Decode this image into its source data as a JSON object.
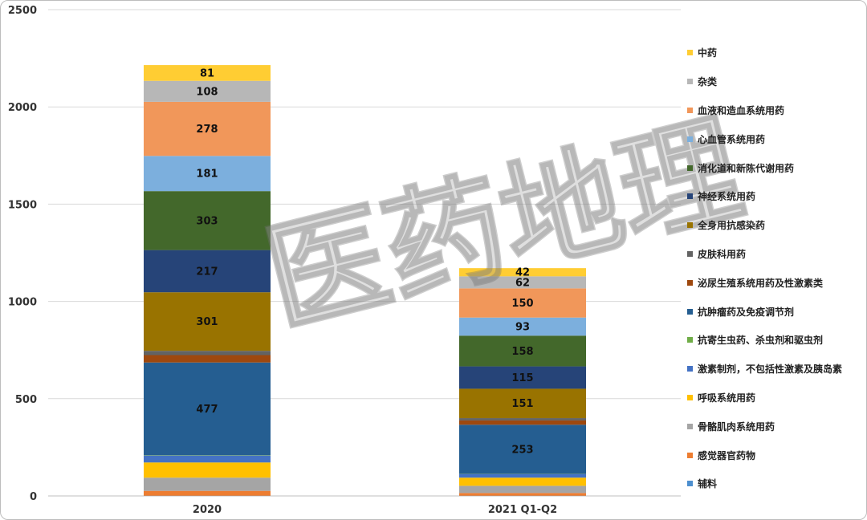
{
  "watermark": "医药地理",
  "chart_data": {
    "type": "bar",
    "stacked": true,
    "categories": [
      "2020",
      "2021 Q1-Q2"
    ],
    "ylim": [
      0,
      2500
    ],
    "yticks": [
      "0",
      "500",
      "1000",
      "1500",
      "2000",
      "2500"
    ],
    "grid": true,
    "legend_position": "right",
    "series": [
      {
        "name": "辅料",
        "color": "#4d8fcf",
        "values": [
          1,
          1
        ],
        "label": [
          "",
          ""
        ]
      },
      {
        "name": "感觉器官药物",
        "color": "#ed7d31",
        "values": [
          25,
          14
        ],
        "label": [
          "",
          ""
        ]
      },
      {
        "name": "骨骼肌肉系统用药",
        "color": "#a5a5a5",
        "values": [
          68,
          37
        ],
        "label": [
          "",
          ""
        ]
      },
      {
        "name": "呼吸系统用药",
        "color": "#ffc000",
        "values": [
          78,
          42
        ],
        "label": [
          "",
          ""
        ]
      },
      {
        "name": "激素制剂，不包括性激素及胰岛素",
        "color": "#4472c4",
        "values": [
          35,
          18
        ],
        "label": [
          "",
          ""
        ]
      },
      {
        "name": "抗寄生虫药、杀虫剂和驱虫剂",
        "color": "#70ad47",
        "values": [
          2,
          1
        ],
        "label": [
          "",
          ""
        ]
      },
      {
        "name": "抗肿瘤药及免疫调节剂",
        "color": "#255e91",
        "values": [
          477,
          253
        ],
        "label": [
          "477",
          "253"
        ]
      },
      {
        "name": "泌尿生殖系统用药及性激素类",
        "color": "#9e480e",
        "values": [
          38,
          22
        ],
        "label": [
          "",
          ""
        ]
      },
      {
        "name": "皮肤科用药",
        "color": "#636363",
        "values": [
          22,
          12
        ],
        "label": [
          "",
          ""
        ]
      },
      {
        "name": "全身用抗感染药",
        "color": "#997300",
        "values": [
          301,
          151
        ],
        "label": [
          "301",
          "151"
        ]
      },
      {
        "name": "神经系统用药",
        "color": "#264478",
        "values": [
          217,
          115
        ],
        "label": [
          "217",
          "115"
        ]
      },
      {
        "name": "消化道和新陈代谢用药",
        "color": "#43682b",
        "values": [
          303,
          158
        ],
        "label": [
          "303",
          "158"
        ]
      },
      {
        "name": "心血管系统用药",
        "color": "#7cafdd",
        "values": [
          181,
          93
        ],
        "label": [
          "181",
          "93"
        ]
      },
      {
        "name": "血液和造血系统用药",
        "color": "#f1975a",
        "values": [
          278,
          150
        ],
        "label": [
          "278",
          "150"
        ]
      },
      {
        "name": "杂类",
        "color": "#b7b7b7",
        "values": [
          108,
          62
        ],
        "label": [
          "108",
          "62"
        ]
      },
      {
        "name": "中药",
        "color": "#ffcd33",
        "values": [
          81,
          42
        ],
        "label": [
          "81",
          "42"
        ]
      }
    ]
  }
}
